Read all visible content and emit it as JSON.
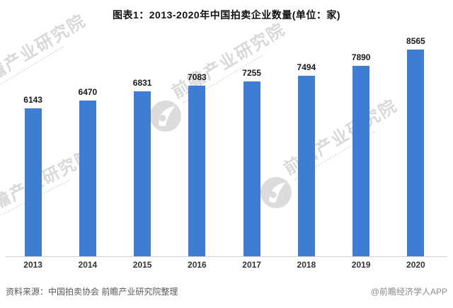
{
  "header": {
    "title": "图表1：2013-2020年中国拍卖企业数量(单位：家)"
  },
  "chart_data": {
    "type": "bar",
    "title": "图表1：2013-2020年中国拍卖企业数量(单位：家)",
    "series_name": "中国拍卖企业数量",
    "unit": "家",
    "categories": [
      "2013",
      "2014",
      "2015",
      "2016",
      "2017",
      "2018",
      "2019",
      "2020"
    ],
    "values": [
      6143,
      6470,
      6831,
      7083,
      7255,
      7494,
      7890,
      8565
    ],
    "xlabel": "",
    "ylabel": "",
    "ylim": [
      0,
      9400
    ],
    "grid": false,
    "legend": false,
    "value_labels": true,
    "bar_color": "#3e7dd2",
    "value_label_color": "#1a1a1a",
    "axis_line_color": "#d6d6d6"
  },
  "watermark": {
    "text": "前瞻产业研究院",
    "logo_color": "#dcdcdc"
  },
  "footer": {
    "source": "资料来源：中国拍卖协会 前瞻产业研究院整理",
    "credit": "@前瞻经济学人APP"
  }
}
